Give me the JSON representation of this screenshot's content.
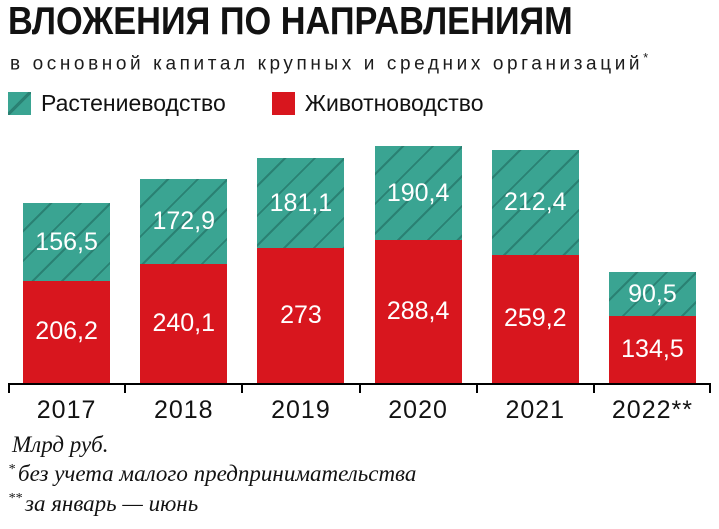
{
  "header": {
    "title": "ВЛОЖЕНИЯ ПО НАПРАВЛЕНИЯМ",
    "subtitle": "в основной капитал крупных и средних организаций",
    "subtitle_marker": "*"
  },
  "legend": {
    "items": [
      {
        "key": "crop",
        "label": "Растениеводство"
      },
      {
        "key": "livestock",
        "label": "Животноводство"
      }
    ]
  },
  "chart_data": {
    "type": "bar",
    "stacked": true,
    "title": "ВЛОЖЕНИЯ ПО НАПРАВЛЕНИЯМ в основной капитал крупных и средних организаций",
    "unit": "Млрд руб.",
    "categories": [
      "2017",
      "2018",
      "2019",
      "2020",
      "2021",
      "2022**"
    ],
    "series": [
      {
        "name": "Растениеводство",
        "key": "crop",
        "color": "#3aa492",
        "hatch_color": "#2a8173",
        "values": [
          156.5,
          172.9,
          181.1,
          190.4,
          212.4,
          90.5
        ],
        "labels": [
          "156,5",
          "172,9",
          "181,1",
          "190,4",
          "212,4",
          "90,5"
        ]
      },
      {
        "name": "Животноводство",
        "key": "livestock",
        "color": "#d8161e",
        "values": [
          206.2,
          240.1,
          273,
          288.4,
          259.2,
          134.5
        ],
        "labels": [
          "206,2",
          "240,1",
          "273",
          "288,4",
          "259,2",
          "134,5"
        ]
      }
    ],
    "totals": [
      362.7,
      413.0,
      454.1,
      478.8,
      471.6,
      225.0
    ],
    "ylim": [
      0,
      511
    ],
    "grid": false,
    "legend_position": "top"
  },
  "footer": {
    "unit": "Млрд руб.",
    "footnotes": [
      {
        "marker": "*",
        "text": "без учета малого предпринимательства"
      },
      {
        "marker": "**",
        "text": "за январь — июнь"
      }
    ]
  },
  "colors": {
    "crop": "#3aa492",
    "crop_hatch": "#2a8173",
    "livestock": "#d8161e",
    "axis": "#000000",
    "text": "#121212"
  }
}
